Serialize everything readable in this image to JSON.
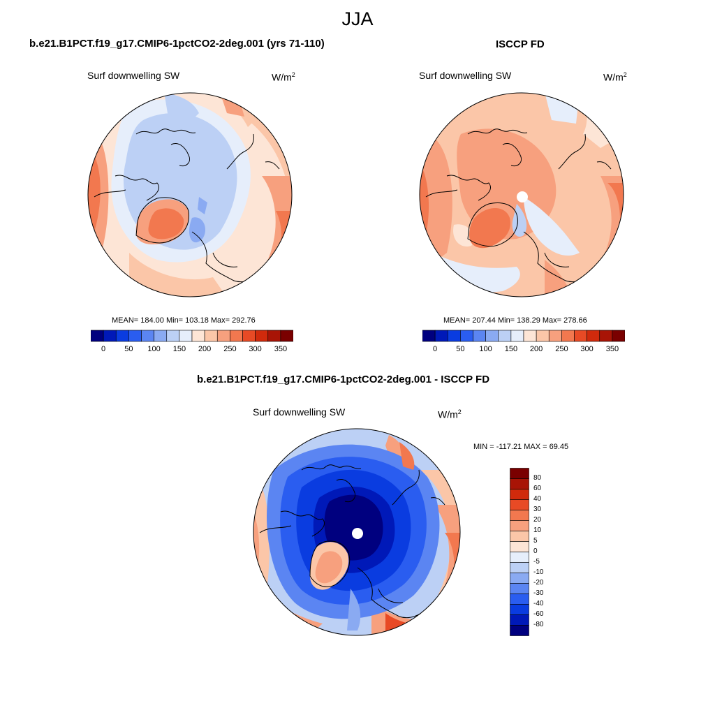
{
  "figure": {
    "title": "JJA"
  },
  "panels": [
    {
      "title": "b.e21.B1PCT.f19_g17.CMIP6-1pctCO2-2deg.001 (yrs 71-110)",
      "variable": "Surf downwelling SW",
      "units": "W/m",
      "units_exp": "2",
      "stats_text": "MEAN= 184.00  Min= 103.18  Max= 292.76",
      "colorbar_ticks": [
        "0",
        "50",
        "100",
        "150",
        "200",
        "250",
        "300",
        "350"
      ]
    },
    {
      "title": "ISCCP FD",
      "variable": "Surf downwelling SW",
      "units": "W/m",
      "units_exp": "2",
      "stats_text": "MEAN= 207.44  Min= 138.29  Max= 278.66",
      "colorbar_ticks": [
        "0",
        "50",
        "100",
        "150",
        "200",
        "250",
        "300",
        "350"
      ]
    },
    {
      "title": "b.e21.B1PCT.f19_g17.CMIP6-1pctCO2-2deg.001 - ISCCP FD",
      "variable": "Surf downwelling SW",
      "units": "W/m",
      "units_exp": "2",
      "stats_text": "MIN = -117.21 MAX =  69.45",
      "colorbar_ticks": [
        "80",
        "60",
        "40",
        "30",
        "20",
        "10",
        "5",
        "0",
        "-5",
        "-10",
        "-20",
        "-30",
        "-40",
        "-60",
        "-80"
      ]
    }
  ],
  "colors": {
    "abs_scale": [
      "#00007f",
      "#0019b8",
      "#0a3ce0",
      "#2a5df0",
      "#5b85f2",
      "#8aaaf2",
      "#bcd0f5",
      "#e6eefb",
      "#fde5d6",
      "#fbc6a8",
      "#f7a07e",
      "#f2784f",
      "#e84a25",
      "#d02a0c",
      "#a81406",
      "#7a0000"
    ],
    "diff_scale": [
      "#7a0000",
      "#a81406",
      "#d02a0c",
      "#e84a25",
      "#f2784f",
      "#f7a07e",
      "#fbc6a8",
      "#fde5d6",
      "#e6eefb",
      "#bcd0f5",
      "#8aaaf2",
      "#5b85f2",
      "#2a5df0",
      "#0a3ce0",
      "#0019b8",
      "#00007f"
    ]
  }
}
